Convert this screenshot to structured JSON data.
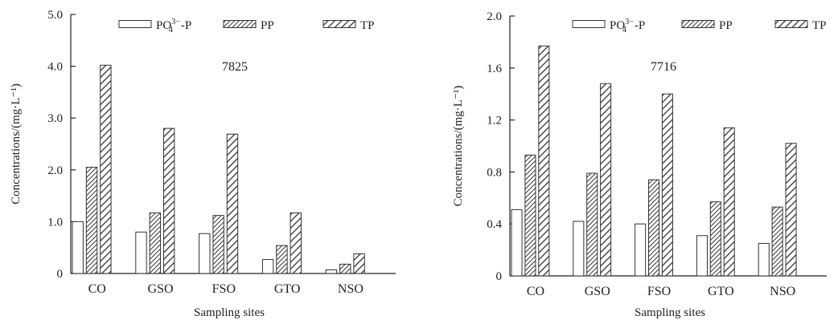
{
  "chart_data": [
    {
      "type": "bar",
      "annotation": "7825",
      "categories": [
        "CO",
        "GSO",
        "FSO",
        "GTO",
        "NSO"
      ],
      "series": [
        {
          "name": "PO4-P",
          "values": [
            1.0,
            0.8,
            0.77,
            0.27,
            0.07
          ]
        },
        {
          "name": "PP",
          "values": [
            2.05,
            1.17,
            1.12,
            0.54,
            0.18
          ]
        },
        {
          "name": "TP",
          "values": [
            4.02,
            2.8,
            2.69,
            1.17,
            0.38
          ]
        }
      ],
      "xlabel": "Sampling sites",
      "ylabel": "Concentrations/(mg·L⁻¹)",
      "ylim": [
        0,
        5.0
      ],
      "yticks": [
        "0",
        "1.0",
        "2.0",
        "3.0",
        "4.0",
        "5.0"
      ],
      "ytick_values": [
        0,
        1,
        2,
        3,
        4,
        5
      ],
      "legend_position": "top",
      "grid": false
    },
    {
      "type": "bar",
      "annotation": "7716",
      "categories": [
        "CO",
        "GSO",
        "FSO",
        "GTO",
        "NSO"
      ],
      "series": [
        {
          "name": "PO4-P",
          "values": [
            0.51,
            0.42,
            0.4,
            0.31,
            0.25
          ]
        },
        {
          "name": "PP",
          "values": [
            0.93,
            0.79,
            0.74,
            0.57,
            0.53
          ]
        },
        {
          "name": "TP",
          "values": [
            1.77,
            1.48,
            1.4,
            1.14,
            1.02
          ]
        }
      ],
      "xlabel": "Sampling sites",
      "ylabel": "Concentrations/(mg·L⁻¹)",
      "ylim": [
        0,
        2.0
      ],
      "yticks": [
        "0",
        "0.4",
        "0.8",
        "1.2",
        "1.6",
        "2.0"
      ],
      "ytick_values": [
        0,
        0.4,
        0.8,
        1.2,
        1.6,
        2.0
      ],
      "legend_position": "top",
      "grid": false
    }
  ],
  "legend": {
    "po4_base": "PO",
    "po4_sub": "4",
    "po4_sup": "3−",
    "po4_suffix": "-P",
    "pp": "PP",
    "tp": "TP"
  }
}
